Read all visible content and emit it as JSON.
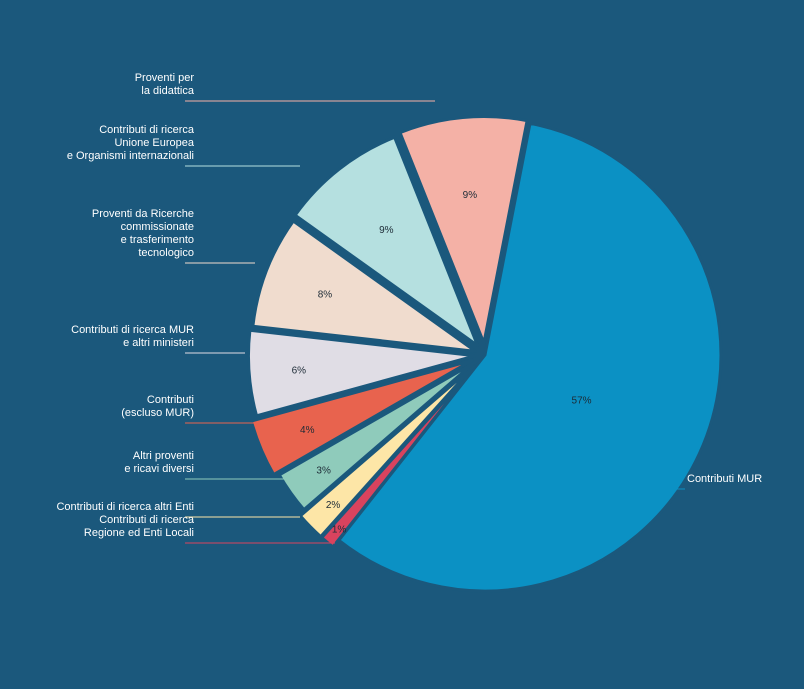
{
  "chart_data": {
    "type": "pie",
    "slices": [
      {
        "name": "Contributi MUR",
        "label": "57%",
        "value": 57,
        "color": "#0b91c4"
      },
      {
        "name": "Contributi di ricerca\nRegione ed Enti Locali",
        "label": "1%",
        "value": 1,
        "color": "#d9435e"
      },
      {
        "name": "Contributi di ricerca altri Enti",
        "label": "2%",
        "value": 2,
        "color": "#fde6a7"
      },
      {
        "name": "Altri proventi\ne ricavi diversi",
        "label": "3%",
        "value": 3,
        "color": "#8fcbbb"
      },
      {
        "name": "Contributi\n(escluso MUR)",
        "label": "4%",
        "value": 4,
        "color": "#e8634e"
      },
      {
        "name": "Contributi di ricerca MUR\ne altri ministeri",
        "label": "6%",
        "value": 6,
        "color": "#e0dde5"
      },
      {
        "name": "Proventi da Ricerche\ncommissionate\ne trasferimento\ntecnologico",
        "label": "8%",
        "value": 8,
        "color": "#f0dcce"
      },
      {
        "name": "Contributi di ricerca\nUnione Europea\ne Organismi internazionali",
        "label": "9%",
        "value": 9,
        "color": "#b5e0e0"
      },
      {
        "name": "Proventi per\nla didattica",
        "label": "9%",
        "value": 9,
        "color": "#f4b1a6"
      }
    ]
  }
}
